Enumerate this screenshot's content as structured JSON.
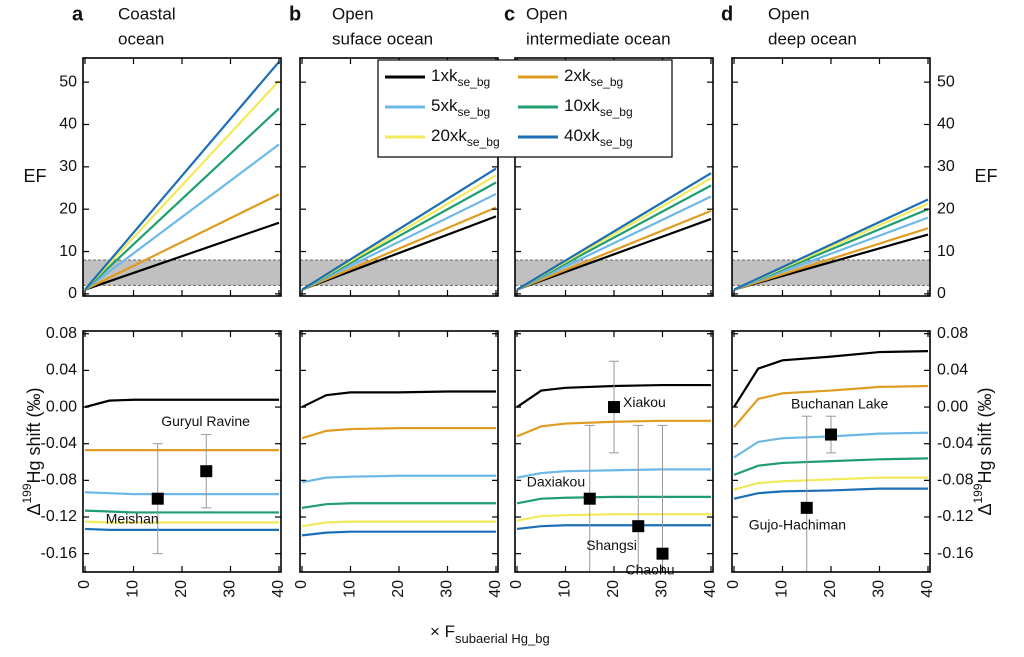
{
  "figure": {
    "xlabel": "× F",
    "xlabel_sub": "subaerial Hg_bg"
  },
  "chart_data": [
    {
      "type": "line",
      "panel": "a",
      "title": [
        "Coastal",
        "ocean"
      ],
      "ylabel": {
        "text": "EF"
      },
      "yaxis": "left",
      "xtick_labels": false,
      "x": [
        0,
        40
      ],
      "xlim": [
        0,
        40
      ],
      "xticks": [
        0,
        10,
        20,
        30,
        40
      ],
      "ylim": [
        -0.5,
        55.7
      ],
      "yticks": [
        0,
        10,
        20,
        30,
        40,
        50
      ],
      "band": {
        "ymin": 2,
        "ymax": 8
      },
      "series": [
        {
          "color": "#000000",
          "values": [
            1,
            16.8
          ]
        },
        {
          "color": "#e09c20",
          "values": [
            1,
            23.5
          ]
        },
        {
          "color": "#6db8e6",
          "values": [
            1,
            35.3
          ]
        },
        {
          "color": "#1f9e6e",
          "values": [
            1,
            43.8
          ]
        },
        {
          "color": "#f2ea5a",
          "values": [
            1,
            50.3
          ]
        },
        {
          "color": "#1c6fb5",
          "values": [
            1,
            54.8
          ]
        }
      ]
    },
    {
      "type": "line",
      "panel": "b",
      "title": [
        "Open",
        "suface ocean"
      ],
      "yaxis": "none",
      "xtick_labels": false,
      "x": [
        0,
        40
      ],
      "xlim": [
        0,
        40
      ],
      "xticks": [
        0,
        10,
        20,
        30,
        40
      ],
      "ylim": [
        -0.5,
        55.7
      ],
      "yticks": [
        0,
        10,
        20,
        30,
        40,
        50
      ],
      "band": {
        "ymin": 2,
        "ymax": 8
      },
      "series": [
        {
          "name": "1xk",
          "subscript": "se_bg",
          "color": "#000000",
          "values": [
            1,
            18.3
          ]
        },
        {
          "name": "2xk",
          "subscript": "se_bg",
          "color": "#e09c20",
          "values": [
            1,
            20.4
          ]
        },
        {
          "name": "5xk",
          "subscript": "se_bg",
          "color": "#6db8e6",
          "values": [
            1,
            23.6
          ]
        },
        {
          "name": "10xk",
          "subscript": "se_bg",
          "color": "#1f9e6e",
          "values": [
            1,
            26.3
          ]
        },
        {
          "name": "20xk",
          "subscript": "se_bg",
          "color": "#f2ea5a",
          "values": [
            1,
            28.0
          ]
        },
        {
          "name": "40xk",
          "subscript": "se_bg",
          "color": "#1c6fb5",
          "values": [
            1,
            29.6
          ]
        }
      ]
    },
    {
      "type": "line",
      "panel": "c",
      "title": [
        "Open",
        "intermediate ocean"
      ],
      "yaxis": "none",
      "xtick_labels": false,
      "x": [
        0,
        40
      ],
      "xlim": [
        0,
        40
      ],
      "xticks": [
        0,
        10,
        20,
        30,
        40
      ],
      "ylim": [
        -0.5,
        55.7
      ],
      "yticks": [
        0,
        10,
        20,
        30,
        40,
        50
      ],
      "band": {
        "ymin": 2,
        "ymax": 8
      },
      "series": [
        {
          "color": "#000000",
          "values": [
            1,
            17.7
          ]
        },
        {
          "color": "#e09c20",
          "values": [
            1,
            19.6
          ]
        },
        {
          "color": "#6db8e6",
          "values": [
            1,
            23.0
          ]
        },
        {
          "color": "#1f9e6e",
          "values": [
            1,
            25.6
          ]
        },
        {
          "color": "#f2ea5a",
          "values": [
            1,
            27.3
          ]
        },
        {
          "color": "#1c6fb5",
          "values": [
            1,
            28.5
          ]
        }
      ]
    },
    {
      "type": "line",
      "panel": "d",
      "title": [
        "Open",
        "deep ocean"
      ],
      "ylabel": {
        "text": "EF"
      },
      "yaxis": "right",
      "xtick_labels": false,
      "x": [
        0,
        40
      ],
      "xlim": [
        0,
        40
      ],
      "xticks": [
        0,
        10,
        20,
        30,
        40
      ],
      "ylim": [
        -0.5,
        55.7
      ],
      "yticks": [
        0,
        10,
        20,
        30,
        40,
        50
      ],
      "band": {
        "ymin": 2,
        "ymax": 8
      },
      "series": [
        {
          "color": "#000000",
          "values": [
            1,
            14.0
          ]
        },
        {
          "color": "#e09c20",
          "values": [
            1,
            15.5
          ]
        },
        {
          "color": "#6db8e6",
          "values": [
            1,
            18.0
          ]
        },
        {
          "color": "#1f9e6e",
          "values": [
            1,
            20.0
          ]
        },
        {
          "color": "#f2ea5a",
          "values": [
            1,
            21.3
          ]
        },
        {
          "color": "#1c6fb5",
          "values": [
            1,
            22.3
          ]
        }
      ]
    },
    {
      "type": "line",
      "ylabel": {
        "text": "Δ",
        "sup": "199",
        "rest": "Hg shift (‰)"
      },
      "yaxis": "left",
      "xtick_labels": true,
      "x": [
        0,
        5,
        10,
        20,
        30,
        40
      ],
      "xlim": [
        0,
        40
      ],
      "xticks": [
        0,
        10,
        20,
        30,
        40
      ],
      "ylim": [
        -0.18,
        0.083
      ],
      "yticks": [
        0.08,
        0.04,
        {
          "value": 0,
          "label": "0.00"
        },
        -0.04,
        -0.08,
        -0.12,
        -0.16
      ],
      "series": [
        {
          "color": "#000000",
          "values": [
            0.0,
            0.007,
            0.008,
            0.008,
            0.008,
            0.008
          ]
        },
        {
          "color": "#e09c20",
          "values": [
            -0.047,
            -0.047,
            -0.047,
            -0.047,
            -0.047,
            -0.047
          ]
        },
        {
          "color": "#6db8e6",
          "values": [
            -0.093,
            -0.094,
            -0.095,
            -0.095,
            -0.095,
            -0.095
          ]
        },
        {
          "color": "#1f9e6e",
          "values": [
            -0.113,
            -0.114,
            -0.115,
            -0.115,
            -0.115,
            -0.115
          ]
        },
        {
          "color": "#f2ea5a",
          "values": [
            -0.125,
            -0.126,
            -0.126,
            -0.126,
            -0.126,
            -0.126
          ]
        },
        {
          "color": "#1c6fb5",
          "values": [
            -0.133,
            -0.134,
            -0.134,
            -0.134,
            -0.134,
            -0.134
          ]
        }
      ],
      "points": [
        {
          "label": "Meishan",
          "x": 15,
          "y": -0.1,
          "error": 0.06
        },
        {
          "label": "Guryul Ravine",
          "x": 25,
          "y": -0.07,
          "error": 0.04
        }
      ]
    },
    {
      "type": "line",
      "yaxis": "none",
      "xtick_labels": true,
      "x": [
        0,
        5,
        10,
        20,
        30,
        40
      ],
      "xlim": [
        0,
        40
      ],
      "xticks": [
        0,
        10,
        20,
        30,
        40
      ],
      "ylim": [
        -0.18,
        0.083
      ],
      "yticks": [
        0.08,
        0.04,
        0,
        -0.04,
        -0.08,
        -0.12,
        -0.16
      ],
      "series": [
        {
          "color": "#000000",
          "values": [
            0.0,
            0.013,
            0.016,
            0.016,
            0.017,
            0.017
          ]
        },
        {
          "color": "#e09c20",
          "values": [
            -0.034,
            -0.026,
            -0.024,
            -0.023,
            -0.023,
            -0.023
          ]
        },
        {
          "color": "#6db8e6",
          "values": [
            -0.082,
            -0.077,
            -0.076,
            -0.075,
            -0.075,
            -0.075
          ]
        },
        {
          "color": "#1f9e6e",
          "values": [
            -0.11,
            -0.106,
            -0.105,
            -0.105,
            -0.105,
            -0.105
          ]
        },
        {
          "color": "#f2ea5a",
          "values": [
            -0.13,
            -0.126,
            -0.125,
            -0.125,
            -0.125,
            -0.125
          ]
        },
        {
          "color": "#1c6fb5",
          "values": [
            -0.14,
            -0.137,
            -0.136,
            -0.136,
            -0.136,
            -0.136
          ]
        }
      ]
    },
    {
      "type": "line",
      "yaxis": "none",
      "xtick_labels": true,
      "x": [
        0,
        5,
        10,
        20,
        30,
        40
      ],
      "xlim": [
        0,
        40
      ],
      "xticks": [
        0,
        10,
        20,
        30,
        40
      ],
      "ylim": [
        -0.18,
        0.083
      ],
      "yticks": [
        0.08,
        0.04,
        0,
        -0.04,
        -0.08,
        -0.12,
        -0.16
      ],
      "series": [
        {
          "color": "#000000",
          "values": [
            0.0,
            0.018,
            0.021,
            0.023,
            0.024,
            0.024
          ]
        },
        {
          "color": "#e09c20",
          "values": [
            -0.032,
            -0.021,
            -0.018,
            -0.016,
            -0.015,
            -0.015
          ]
        },
        {
          "color": "#6db8e6",
          "values": [
            -0.077,
            -0.072,
            -0.07,
            -0.069,
            -0.068,
            -0.068
          ]
        },
        {
          "color": "#1f9e6e",
          "values": [
            -0.105,
            -0.1,
            -0.099,
            -0.098,
            -0.098,
            -0.098
          ]
        },
        {
          "color": "#f2ea5a",
          "values": [
            -0.124,
            -0.119,
            -0.118,
            -0.117,
            -0.117,
            -0.117
          ]
        },
        {
          "color": "#1c6fb5",
          "values": [
            -0.133,
            -0.13,
            -0.129,
            -0.129,
            -0.129,
            -0.129
          ]
        }
      ],
      "points": [
        {
          "label": "Xiakou",
          "x": 20,
          "y": 0.0,
          "error": 0.05
        },
        {
          "label": "Daxiakou",
          "x": 15,
          "y": -0.1,
          "error": 0.08
        },
        {
          "label": "Shangsi",
          "x": 25,
          "y": -0.13,
          "error": 0.11
        },
        {
          "label": "Chaohu",
          "x": 30,
          "y": -0.16,
          "error": 0.14
        }
      ]
    },
    {
      "type": "line",
      "ylabel": {
        "text": "Δ",
        "sup": "199",
        "rest": "Hg shift (‰)"
      },
      "yaxis": "right",
      "xtick_labels": true,
      "x": [
        0,
        5,
        10,
        20,
        30,
        40
      ],
      "xlim": [
        0,
        40
      ],
      "xticks": [
        0,
        10,
        20,
        30,
        40
      ],
      "ylim": [
        -0.18,
        0.083
      ],
      "yticks": [
        0.08,
        0.04,
        {
          "value": 0,
          "label": "0.00"
        },
        -0.04,
        -0.08,
        -0.12,
        -0.16
      ],
      "series": [
        {
          "color": "#000000",
          "values": [
            0.0,
            0.042,
            0.051,
            0.055,
            0.06,
            0.061
          ]
        },
        {
          "color": "#e09c20",
          "values": [
            -0.022,
            0.009,
            0.015,
            0.018,
            0.022,
            0.023
          ]
        },
        {
          "color": "#6db8e6",
          "values": [
            -0.055,
            -0.038,
            -0.034,
            -0.032,
            -0.029,
            -0.028
          ]
        },
        {
          "color": "#1f9e6e",
          "values": [
            -0.074,
            -0.064,
            -0.061,
            -0.059,
            -0.057,
            -0.056
          ]
        },
        {
          "color": "#f2ea5a",
          "values": [
            -0.09,
            -0.083,
            -0.081,
            -0.079,
            -0.077,
            -0.077
          ]
        },
        {
          "color": "#1c6fb5",
          "values": [
            -0.1,
            -0.094,
            -0.092,
            -0.091,
            -0.089,
            -0.089
          ]
        }
      ],
      "points": [
        {
          "label": "Buchanan Lake",
          "x": 20,
          "y": -0.03,
          "error": 0.02
        },
        {
          "label": "Gujo-Hachiman",
          "x": 15,
          "y": -0.11,
          "error": 0.1
        }
      ]
    }
  ]
}
